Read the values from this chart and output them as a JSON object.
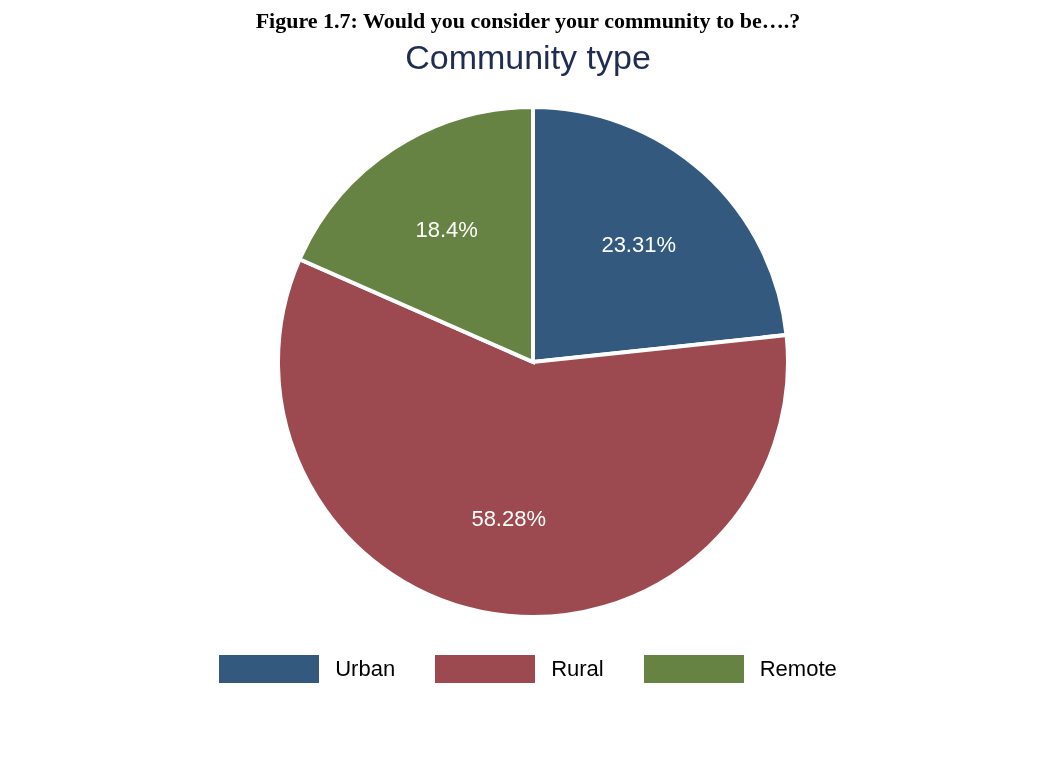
{
  "chart_data": {
    "type": "pie",
    "title": "Community type",
    "annotations": [
      "Figure 1.7:  Would you consider your community to be….?"
    ],
    "categories": [
      "Urban",
      "Rural",
      "Remote"
    ],
    "values": [
      23.31,
      58.28,
      18.4
    ],
    "value_labels": [
      "23.31%",
      "58.28%",
      "18.4%"
    ],
    "colors": [
      "#335a7e",
      "#9c4a50",
      "#678343"
    ],
    "legend": "bottom"
  }
}
